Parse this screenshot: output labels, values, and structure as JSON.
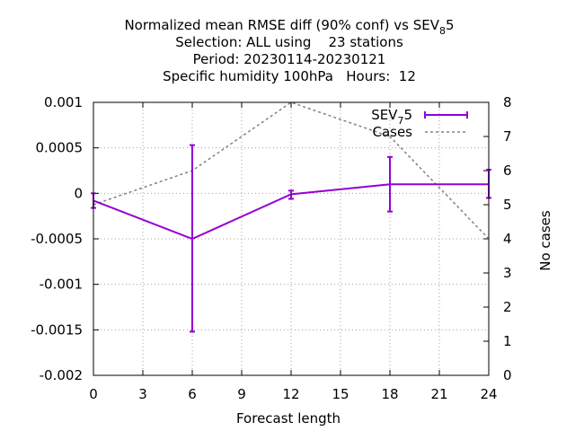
{
  "chart_data": {
    "type": "line",
    "title_lines": [
      {
        "text": "Normalized mean RMSE diff (90% conf) vs SEV",
        "sub": "8",
        "tail": "5"
      },
      {
        "text": "Selection: ALL using    23 stations"
      },
      {
        "text": "Period: 20230114-20230121"
      },
      {
        "text": "Specific humidity 100hPa   Hours:  12"
      }
    ],
    "xlabel": "Forecast length",
    "ylabel_right": "No cases",
    "xlim": [
      0,
      24
    ],
    "ylim": [
      -0.002,
      0.001
    ],
    "y2lim": [
      0,
      8
    ],
    "xticks": [
      "0",
      "3",
      "6",
      "9",
      "12",
      "15",
      "18",
      "21",
      "24"
    ],
    "yticks": [
      "-0.002",
      "-0.0015",
      "-0.001",
      "-0.0005",
      "0",
      "0.0005",
      "0.001"
    ],
    "y2ticks": [
      "0",
      "1",
      "2",
      "3",
      "4",
      "5",
      "6",
      "7",
      "8"
    ],
    "grid": true,
    "legend_position": "top-right",
    "series": [
      {
        "name": "SEV",
        "name_sub": "7",
        "name_tail": "5",
        "color": "#9400d3",
        "axis": "left",
        "x": [
          0,
          6,
          12,
          18,
          24
        ],
        "y": [
          -8e-05,
          -0.0005,
          -1e-05,
          0.0001,
          0.0001
        ],
        "err_low": [
          -0.00016,
          -0.00152,
          -6e-05,
          -0.0002,
          -5e-05
        ],
        "err_high": [
          0.0,
          0.00053,
          3e-05,
          0.0004,
          0.00026
        ]
      },
      {
        "name": "Cases",
        "color": "#808080",
        "axis": "right",
        "x": [
          0,
          6,
          12,
          18,
          24
        ],
        "y": [
          5,
          6,
          8,
          7,
          4
        ]
      }
    ]
  }
}
